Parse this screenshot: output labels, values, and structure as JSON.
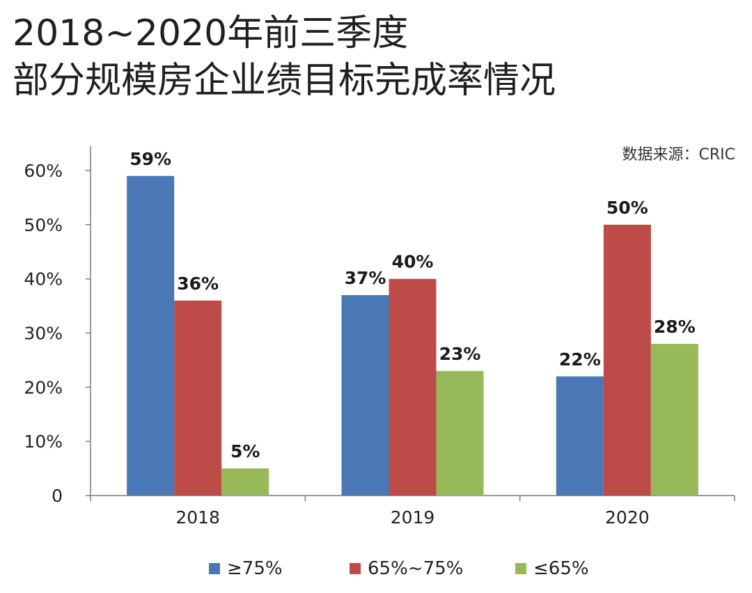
{
  "title_lines": [
    "2018~2020年前三季度",
    "部分规模房企业绩目标完成率情况"
  ],
  "source": "数据来源：CRIC",
  "chart_data": {
    "type": "bar",
    "title": "2018~2020年前三季度部分规模房企业绩目标完成率情况",
    "categories": [
      "2018",
      "2019",
      "2020"
    ],
    "series": [
      {
        "name": "≥75%",
        "values": [
          59,
          37,
          22
        ],
        "labels": [
          "59%",
          "37%",
          "22%"
        ],
        "color": "#4a78b4"
      },
      {
        "name": "65%~75%",
        "values": [
          36,
          40,
          50
        ],
        "labels": [
          "36%",
          "40%",
          "50%"
        ],
        "color": "#bd4b48"
      },
      {
        "name": "≤65%",
        "values": [
          5,
          23,
          28
        ],
        "labels": [
          "5%",
          "23%",
          "28%"
        ],
        "color": "#98b95a"
      }
    ],
    "ylim": [
      0,
      60
    ],
    "yticks": [
      0,
      10,
      20,
      30,
      40,
      50,
      60
    ],
    "ytick_labels": [
      "0",
      "10%",
      "20%",
      "30%",
      "40%",
      "50%",
      "60%"
    ],
    "grid": false,
    "legend_position": "bottom",
    "xlabel": "",
    "ylabel": ""
  }
}
